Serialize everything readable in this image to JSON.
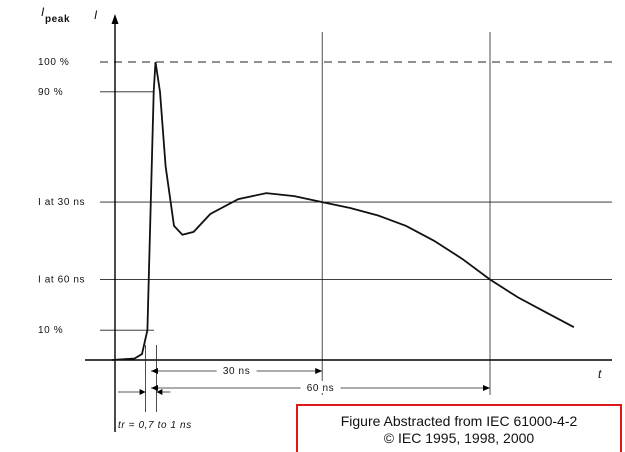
{
  "chart_data": {
    "type": "line",
    "y_axis_title": {
      "main": "I",
      "sub": "peak"
    },
    "y_axis_marker": "I",
    "x_axis_marker": "t",
    "y_levels": [
      {
        "label": "100 %",
        "value": 100,
        "style": "dashed"
      },
      {
        "label": "90 %",
        "value": 90,
        "style": "short"
      },
      {
        "label": "I at 30 ns",
        "value": 53,
        "style": "solid"
      },
      {
        "label": "I at 60 ns",
        "value": 27,
        "style": "solid"
      },
      {
        "label": "10 %",
        "value": 10,
        "style": "short"
      }
    ],
    "time_markers": [
      {
        "label": "30 ns",
        "t": 30
      },
      {
        "label": "60 ns",
        "t": 60
      }
    ],
    "rise_time_label": "tr = 0,7 to 1 ns",
    "rise_time_ns": [
      0.7,
      1
    ],
    "ylim": [
      0,
      100
    ],
    "xlim": [
      -5,
      75
    ],
    "series": [
      {
        "points": [
          [
            -5,
            0
          ],
          [
            -2,
            0.5
          ],
          [
            -1,
            2
          ],
          [
            -0.4,
            10
          ],
          [
            0.3,
            90
          ],
          [
            0.5,
            100
          ],
          [
            1,
            90
          ],
          [
            2,
            65
          ],
          [
            3.5,
            45
          ],
          [
            5,
            42
          ],
          [
            7,
            43
          ],
          [
            10,
            49
          ],
          [
            15,
            54
          ],
          [
            20,
            56
          ],
          [
            25,
            55
          ],
          [
            30,
            53
          ],
          [
            35,
            51
          ],
          [
            40,
            48.5
          ],
          [
            45,
            45
          ],
          [
            50,
            40
          ],
          [
            55,
            34
          ],
          [
            60,
            27
          ],
          [
            65,
            21
          ],
          [
            70,
            16
          ],
          [
            75,
            11
          ]
        ]
      }
    ]
  },
  "notice": {
    "line1": "Figure Abstracted from IEC 61000-4-2",
    "line2": "© IEC 1995, 1998, 2000"
  }
}
